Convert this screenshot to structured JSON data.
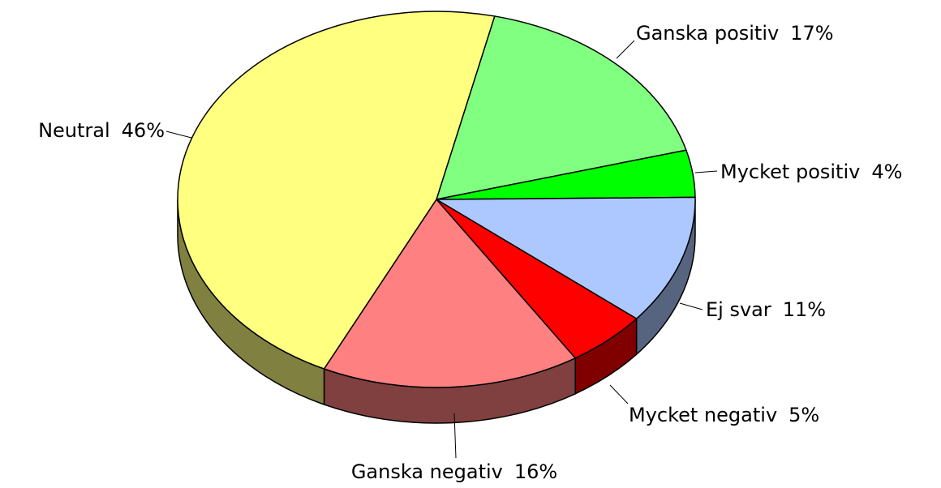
{
  "chart_data": {
    "type": "pie",
    "categories": [
      "Ganska positiv",
      "Mycket positiv",
      "Ej svar",
      "Mycket negativ",
      "Ganska negativ",
      "Neutral"
    ],
    "values": [
      17,
      4,
      11,
      5,
      16,
      46
    ],
    "value_labels": [
      "17%",
      "4%",
      "11%",
      "5%",
      "16%",
      "46%"
    ],
    "colors": [
      "#80ff80",
      "#00ff00",
      "#adc8ff",
      "#ff0000",
      "#ff8080",
      "#ffff80"
    ]
  }
}
